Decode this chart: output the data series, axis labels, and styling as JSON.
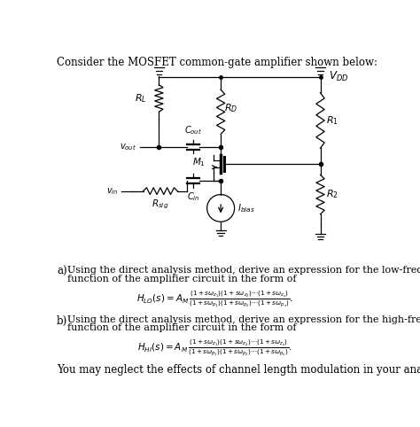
{
  "title": "Consider the MOSFET common-gate amplifier shown below:",
  "bg_color": "#ffffff",
  "text_color": "#000000",
  "figsize": [
    4.74,
    4.82
  ],
  "dpi": 100,
  "part_a_line1": "a)  Using the direct analysis method, derive an expression for the low-frequency transfer",
  "part_a_line2": "     function of the amplifier circuit in the form of",
  "part_b_line1": "b)  Using the direct analysis method, derive an expression for the high-frequency transfer",
  "part_b_line2": "     function of the amplifier circuit in the form of",
  "footer": "You may neglect the effects of channel length modulation in your analysis."
}
